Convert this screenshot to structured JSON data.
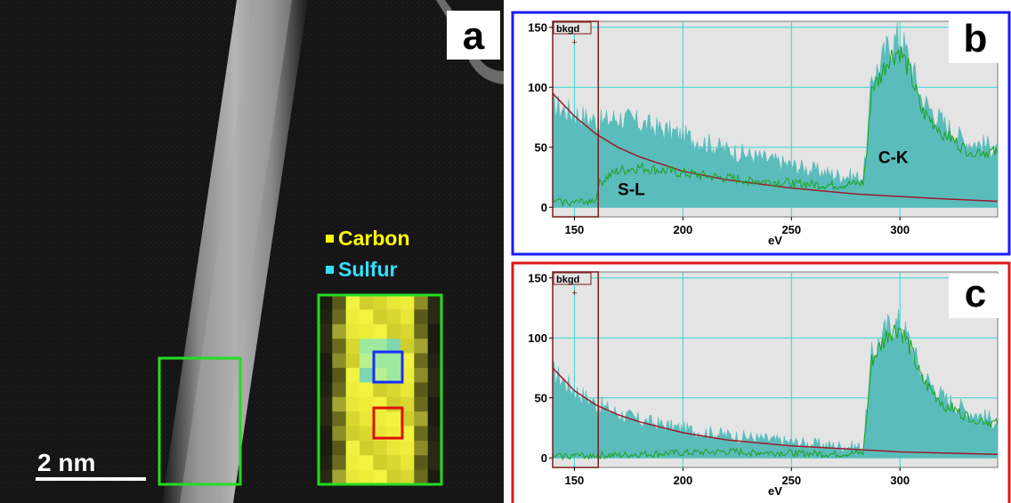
{
  "panel_a": {
    "letter": "a",
    "scale_bar_label": "2 nm",
    "legend": [
      {
        "label": "Carbon",
        "color": "#ffff00"
      },
      {
        "label": "Sulfur",
        "color": "#33e0ff"
      }
    ],
    "colors": {
      "box": "#22dd22",
      "blue_marker": "#1a2cff",
      "red_marker": "#e01010"
    }
  },
  "chart_data": [
    {
      "type": "area",
      "panel": "b",
      "frame_color": "#1a1aff",
      "xlabel": "eV",
      "xlim": [
        140,
        345
      ],
      "ylim": [
        -8,
        155
      ],
      "x_ticks": [
        150,
        200,
        250,
        300
      ],
      "y_ticks": [
        0,
        50,
        100,
        150
      ],
      "grid": true,
      "bkgd_label": "bkgd",
      "bkgd_window": [
        140,
        161
      ],
      "annotations": [
        {
          "text": "S-L",
          "x": 170,
          "y": 10
        },
        {
          "text": "C-K",
          "x": 290,
          "y": 37
        }
      ],
      "series": [
        {
          "role": "spectrum",
          "color": "#5bbcbc",
          "x": [
            140,
            150,
            160,
            161,
            170,
            180,
            200,
            220,
            250,
            270,
            283,
            285,
            287,
            290,
            295,
            300,
            305,
            310,
            320,
            330,
            345
          ],
          "y": [
            85,
            78,
            72,
            70,
            75,
            70,
            60,
            48,
            35,
            27,
            25,
            55,
            110,
            115,
            135,
            142,
            120,
            90,
            70,
            55,
            50
          ]
        },
        {
          "role": "background_fit",
          "color": "#9b1c2b",
          "x": [
            140,
            150,
            160,
            170,
            180,
            200,
            220,
            250,
            280,
            300,
            320,
            345
          ],
          "y": [
            95,
            76,
            61,
            50,
            42,
            30,
            23,
            16,
            11,
            9,
            7,
            5
          ]
        },
        {
          "role": "background_subtracted",
          "color": "#1aa31a",
          "x": [
            140,
            150,
            155,
            160,
            161,
            163,
            166,
            170,
            180,
            200,
            220,
            250,
            270,
            283,
            285,
            287,
            290,
            295,
            300,
            305,
            310,
            320,
            330,
            345
          ],
          "y": [
            5,
            4,
            5,
            6,
            18,
            22,
            26,
            30,
            33,
            28,
            24,
            20,
            18,
            20,
            50,
            100,
            105,
            125,
            130,
            110,
            80,
            62,
            48,
            45
          ]
        }
      ]
    },
    {
      "type": "area",
      "panel": "c",
      "frame_color": "#e01515",
      "xlabel": "eV",
      "xlim": [
        140,
        345
      ],
      "ylim": [
        -8,
        155
      ],
      "x_ticks": [
        150,
        200,
        250,
        300
      ],
      "y_ticks": [
        0,
        50,
        100,
        150
      ],
      "grid": true,
      "bkgd_label": "bkgd",
      "bkgd_window": [
        140,
        161
      ],
      "annotations": [],
      "series": [
        {
          "role": "spectrum",
          "color": "#5bbcbc",
          "x": [
            140,
            150,
            160,
            170,
            180,
            200,
            220,
            250,
            270,
            283,
            285,
            287,
            290,
            295,
            300,
            305,
            310,
            320,
            330,
            345
          ],
          "y": [
            72,
            56,
            45,
            37,
            31,
            24,
            19,
            13,
            10,
            9,
            45,
            85,
            95,
            110,
            112,
            95,
            70,
            50,
            40,
            30
          ]
        },
        {
          "role": "background_fit",
          "color": "#9b1c2b",
          "x": [
            140,
            150,
            160,
            170,
            180,
            200,
            220,
            250,
            280,
            300,
            320,
            345
          ],
          "y": [
            75,
            56,
            44,
            36,
            30,
            21,
            15,
            10,
            7,
            5,
            4,
            3
          ]
        },
        {
          "role": "background_subtracted",
          "color": "#1aa31a",
          "x": [
            140,
            150,
            160,
            170,
            180,
            200,
            220,
            250,
            270,
            283,
            285,
            287,
            290,
            295,
            300,
            305,
            310,
            320,
            330,
            345
          ],
          "y": [
            1,
            2,
            2,
            2,
            3,
            4,
            5,
            4,
            3,
            4,
            40,
            80,
            90,
            105,
            108,
            90,
            65,
            45,
            35,
            28
          ]
        }
      ]
    }
  ]
}
